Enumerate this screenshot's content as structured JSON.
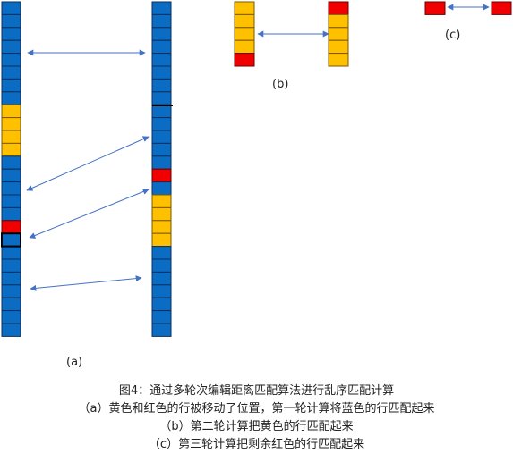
{
  "labels": {
    "a": "(a)",
    "b": "(b)",
    "c": "(c)"
  },
  "caption": {
    "title": "图4：通过多轮次编辑距离匹配算法进行乱序匹配计算",
    "line_a": "（a）黄色和红色的行被移动了位置，第一轮计算将蓝色的行匹配起来",
    "line_b": "（b）第二轮计算把黄色的行匹配起来",
    "line_c": "（c）第三轮计算把剩余红色的行匹配起来"
  },
  "colors": {
    "blue": "#0a6cc2",
    "yellow": "#ffc000",
    "red": "#f00000",
    "arrow": "#4472c4"
  }
}
